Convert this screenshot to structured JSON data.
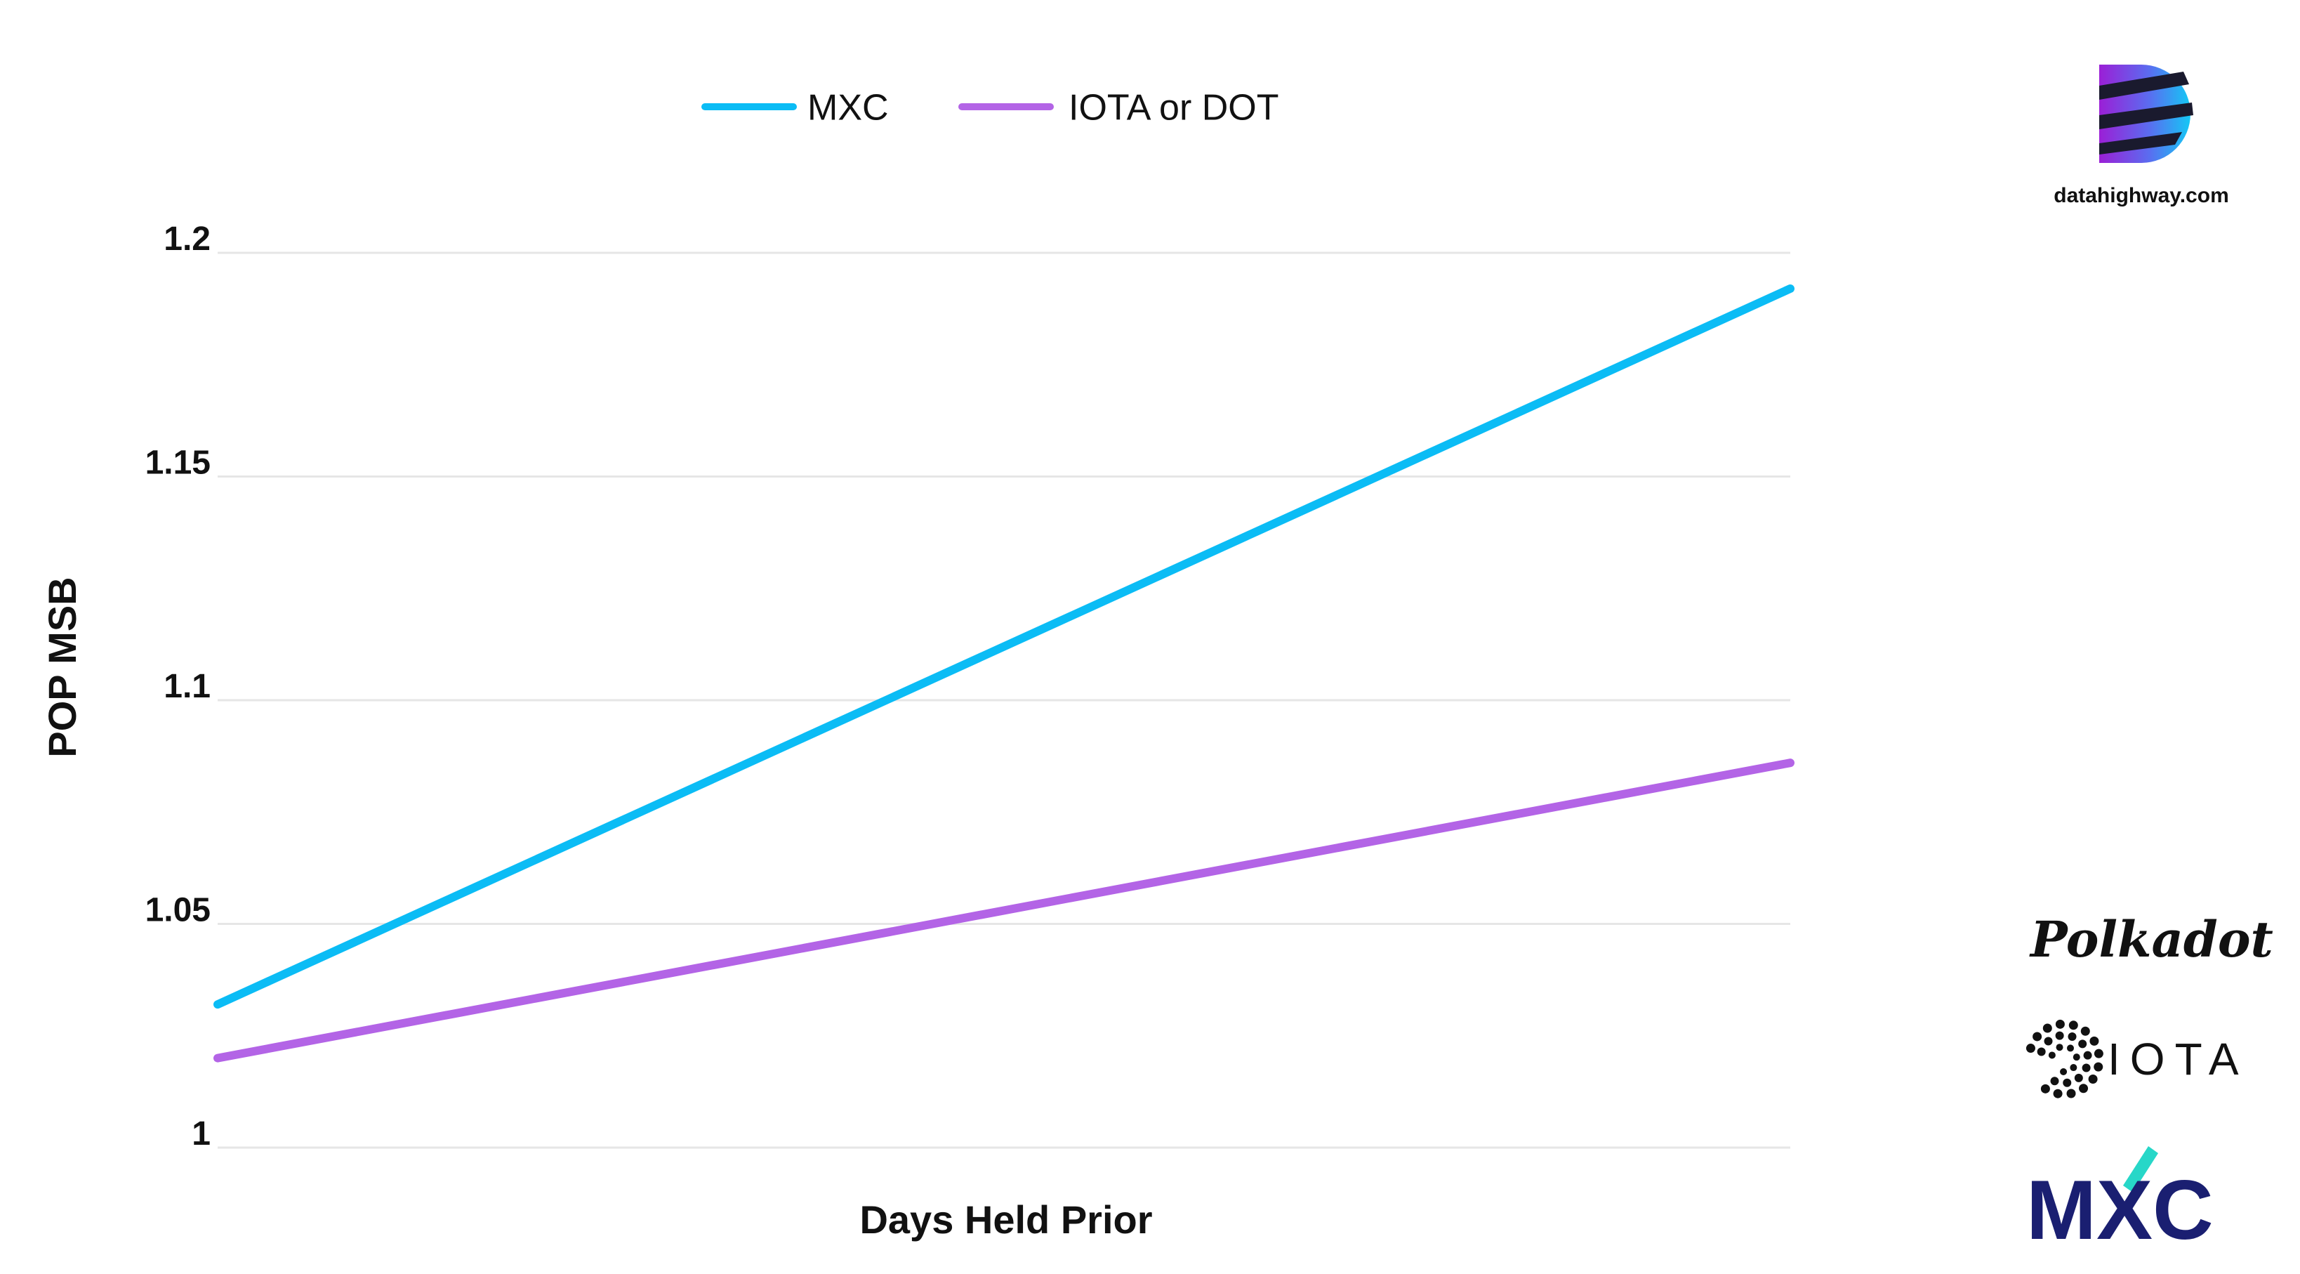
{
  "chart_data": {
    "type": "line",
    "xlabel": "Days Held Prior",
    "ylabel": "POP MSB",
    "ylim": [
      1,
      1.2
    ],
    "yticks": [
      "1",
      "1.05",
      "1.1",
      "1.15",
      "1.2"
    ],
    "grid": true,
    "legend_position": "top",
    "series": [
      {
        "name": "MXC",
        "color": "#0bbcf5",
        "values": [
          1.032,
          1.192
        ]
      },
      {
        "name": "IOTA or DOT",
        "color": "#b364e6",
        "values": [
          1.02,
          1.086
        ]
      }
    ]
  },
  "branding": {
    "url": "datahighway.com",
    "polkadot": "Polkadot",
    "iota": "IOTA",
    "mxc": "MXC"
  }
}
